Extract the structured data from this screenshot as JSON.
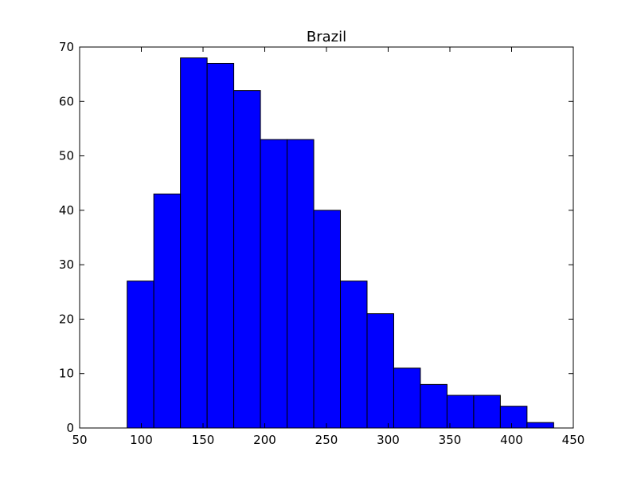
{
  "chart_data": {
    "type": "bar",
    "subtype": "histogram",
    "title": "Brazil",
    "xlabel": "",
    "ylabel": "",
    "xlim": [
      50,
      450
    ],
    "ylim": [
      0,
      70
    ],
    "xticks": [
      50,
      100,
      150,
      200,
      250,
      300,
      350,
      400,
      450
    ],
    "yticks": [
      0,
      10,
      20,
      30,
      40,
      50,
      60,
      70
    ],
    "bin_edges": [
      88.5,
      110.1,
      131.7,
      153.3,
      174.9,
      196.5,
      218.1,
      239.7,
      261.3,
      282.9,
      304.5,
      326.1,
      347.7,
      369.3,
      390.9,
      412.5,
      434.1
    ],
    "values": [
      27,
      43,
      68,
      67,
      62,
      53,
      53,
      40,
      27,
      21,
      11,
      8,
      6,
      6,
      4,
      1
    ],
    "bar_color": "#0000ff",
    "edge_color": "#000000",
    "grid": false
  }
}
